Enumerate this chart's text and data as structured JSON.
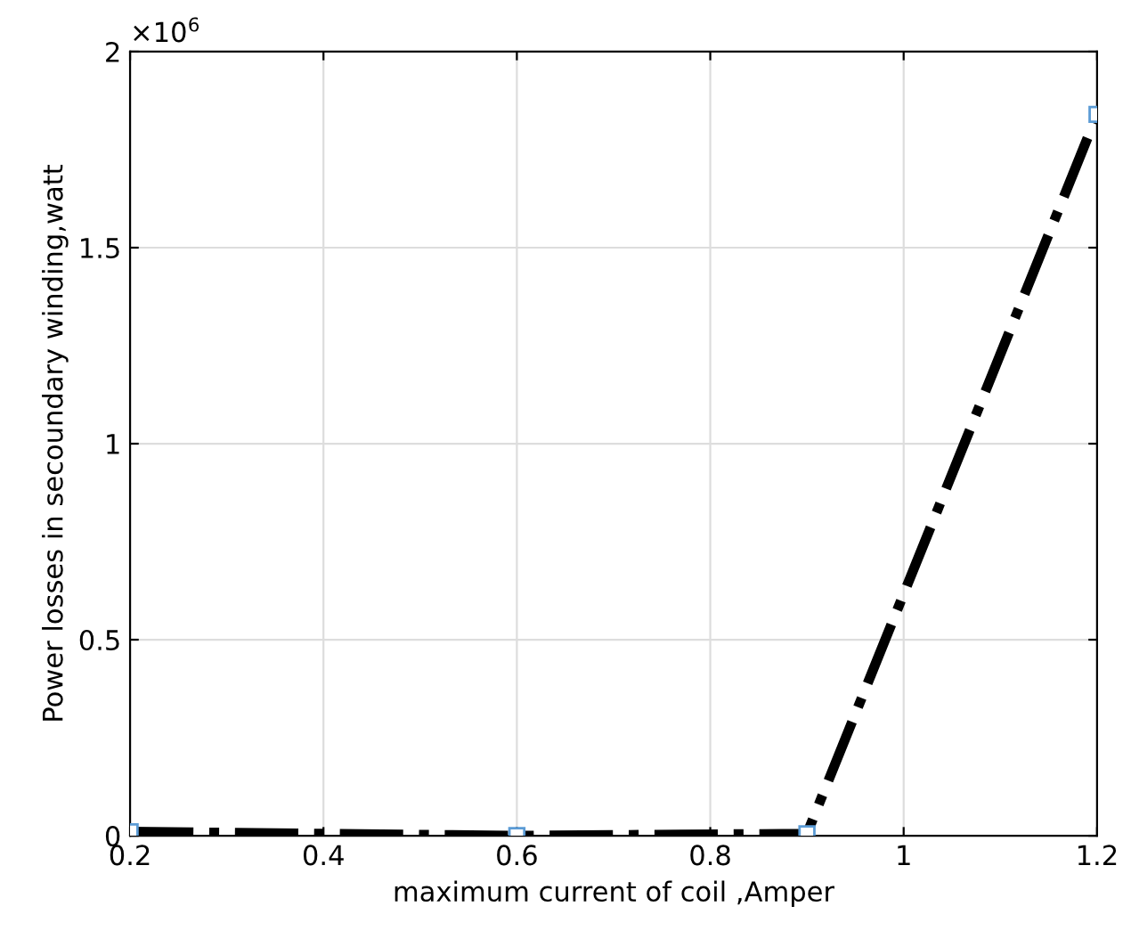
{
  "chart_data": {
    "type": "line",
    "xlabel": "maximum current of coil ,Amper",
    "ylabel": "Power losses in secoundary winding,watt",
    "x": [
      0.2,
      0.6,
      0.9,
      1.2
    ],
    "series": [
      {
        "color": "#000000",
        "values": [
          0.01,
          0.0,
          0.005,
          1.84
        ]
      }
    ],
    "xlim": [
      0.2,
      1.2
    ],
    "xticks": [
      0.2,
      0.4,
      0.6,
      0.8,
      1,
      1.2
    ],
    "ylim": [
      0,
      2
    ],
    "yticks": [
      0,
      0.5,
      1,
      1.5,
      2
    ],
    "annotations": [
      "×10$^{6}$"
    ],
    "grid": true,
    "marker": "square",
    "line_style": "dashed"
  }
}
